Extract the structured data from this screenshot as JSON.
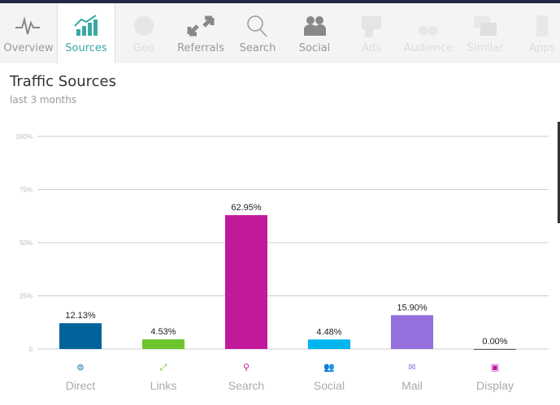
{
  "nav": {
    "tabs": [
      {
        "label": "Overview",
        "icon": "pulse-icon",
        "state": "normal"
      },
      {
        "label": "Sources",
        "icon": "chart-growth-icon",
        "state": "active"
      },
      {
        "label": "Geo",
        "icon": "globe-icon",
        "state": "disabled"
      },
      {
        "label": "Referrals",
        "icon": "arrows-icon",
        "state": "normal"
      },
      {
        "label": "Search",
        "icon": "magnifier-icon",
        "state": "normal"
      },
      {
        "label": "Social",
        "icon": "people-icon",
        "state": "normal"
      },
      {
        "label": "Ads",
        "icon": "ads-icon",
        "state": "disabled"
      },
      {
        "label": "Audience",
        "icon": "binoculars-icon",
        "state": "disabled"
      },
      {
        "label": "Similar",
        "icon": "windows-icon",
        "state": "disabled"
      },
      {
        "label": "Apps",
        "icon": "phone-icon",
        "state": "disabled"
      }
    ]
  },
  "header": {
    "title": "Traffic Sources",
    "subtitle": "last 3 months"
  },
  "chart_data": {
    "type": "bar",
    "categories": [
      "Direct",
      "Links",
      "Search",
      "Social",
      "Mail",
      "Display"
    ],
    "values": [
      12.13,
      4.53,
      62.95,
      4.48,
      15.9,
      0.0
    ],
    "data_labels": [
      "12.13%",
      "4.53%",
      "62.95%",
      "4.48%",
      "15.90%",
      "0.00%"
    ],
    "colors": [
      "#00639a",
      "#6cc52c",
      "#c2189a",
      "#00b4ef",
      "#9370db",
      "#c2189a"
    ],
    "icons": [
      "direct-icon",
      "links-icon",
      "search-icon",
      "social-icon",
      "mail-icon",
      "display-icon"
    ],
    "ylim": [
      0,
      100
    ],
    "yticks": [
      "0",
      "25%",
      "50%",
      "75%",
      "100%"
    ],
    "grid": true
  }
}
